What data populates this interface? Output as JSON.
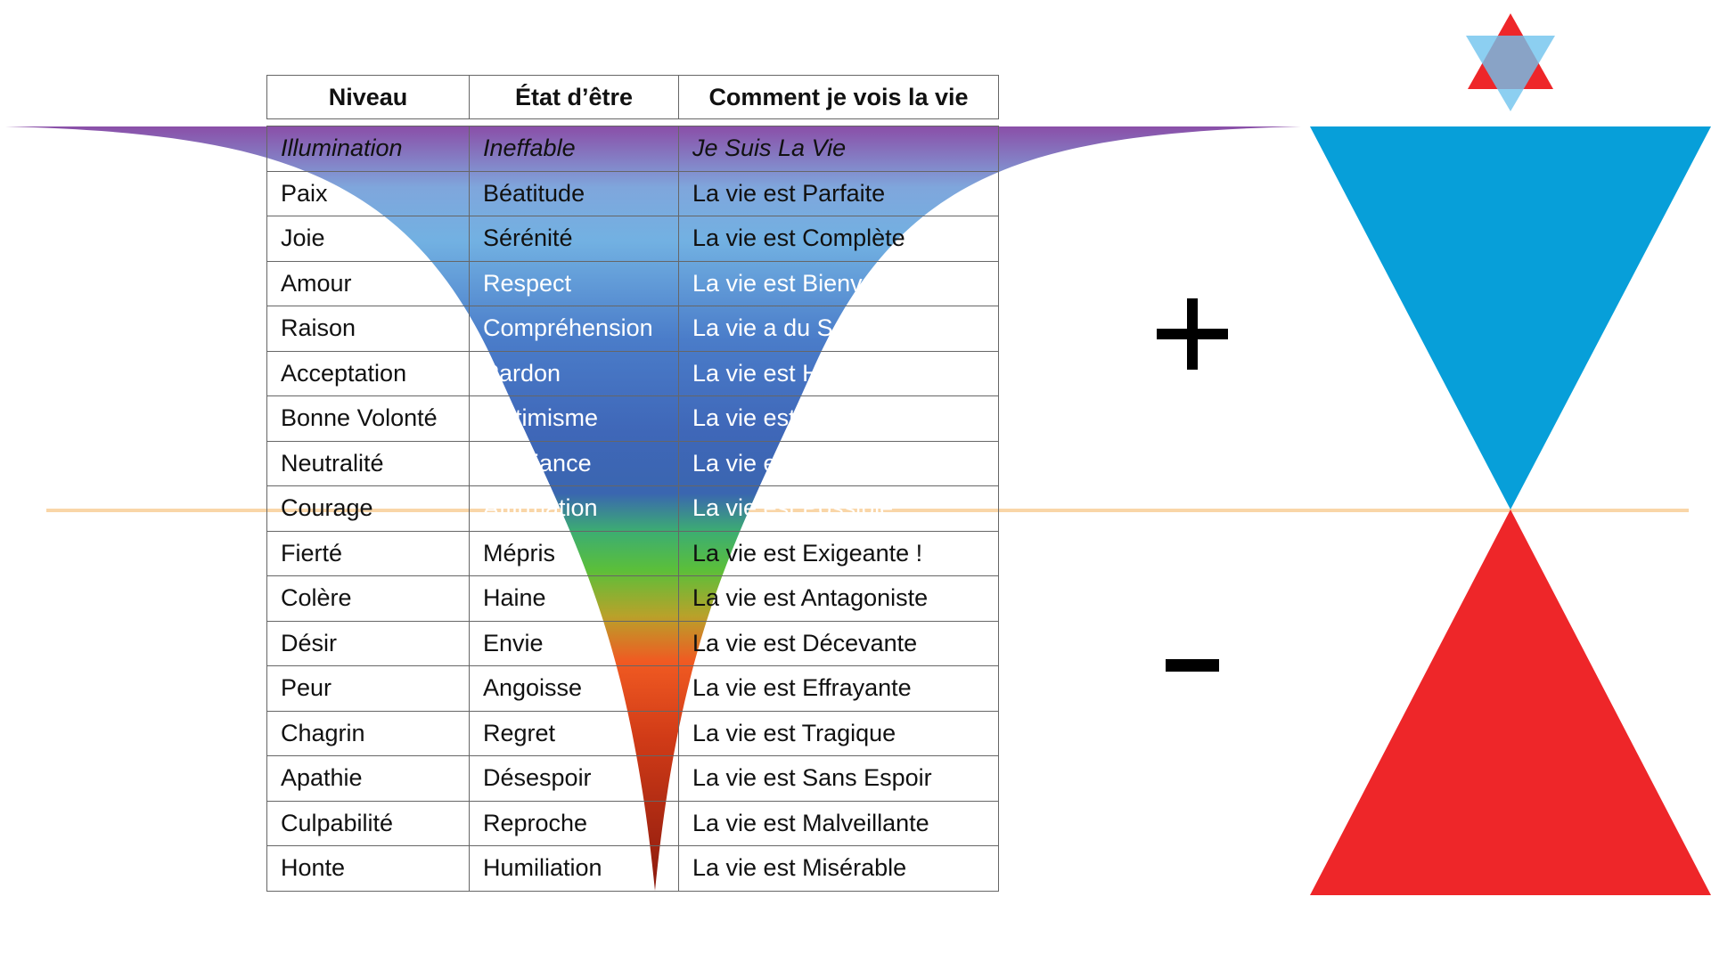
{
  "table": {
    "headers": [
      "Niveau",
      "État d’être",
      "Comment je vois la vie"
    ],
    "rows": [
      {
        "niveau": "Illumination",
        "etat": "Ineffable",
        "vie": "Je Suis La Vie"
      },
      {
        "niveau": "Paix",
        "etat": "Béatitude",
        "vie": "La vie est Parfaite"
      },
      {
        "niveau": "Joie",
        "etat": "Sérénité",
        "vie": "La vie est Complète"
      },
      {
        "niveau": "Amour",
        "etat": "Respect",
        "vie": "La vie est Bienveillante"
      },
      {
        "niveau": "Raison",
        "etat": "Compréhension",
        "vie": "La vie a du Sens"
      },
      {
        "niveau": "Acceptation",
        "etat": "Pardon",
        "vie": "La vie est Harmonieuse"
      },
      {
        "niveau": "Bonne Volonté",
        "etat": "Optimisme",
        "vie": "La vie est Pleine d’Espoir"
      },
      {
        "niveau": "Neutralité",
        "etat": "Confiance",
        "vie": "La vie est Satisfaisante"
      },
      {
        "niveau": "Courage",
        "etat": "Affirmation",
        "vie": "La vie est Possible"
      },
      {
        "niveau": "Fierté",
        "etat": "Mépris",
        "vie": "La vie est Exigeante !"
      },
      {
        "niveau": "Colère",
        "etat": "Haine",
        "vie": "La vie est Antagoniste"
      },
      {
        "niveau": "Désir",
        "etat": "Envie",
        "vie": "La vie est Décevante"
      },
      {
        "niveau": "Peur",
        "etat": "Angoisse",
        "vie": "La vie est Effrayante"
      },
      {
        "niveau": "Chagrin",
        "etat": "Regret",
        "vie": "La vie est Tragique"
      },
      {
        "niveau": "Apathie",
        "etat": "Désespoir",
        "vie": "La vie est Sans Espoir"
      },
      {
        "niveau": "Culpabilité",
        "etat": "Reproche",
        "vie": "La vie est Malveillante"
      },
      {
        "niveau": "Honte",
        "etat": "Humiliation",
        "vie": "La vie est Misérable"
      }
    ]
  },
  "signs": {
    "positive": "+",
    "negative": "-"
  },
  "colors": {
    "funnel_top": "#8a4fa8",
    "funnel_blue": "#3d6fc2",
    "funnel_green": "#5bbf3a",
    "funnel_orange": "#f05a22",
    "funnel_bottom": "#8b1a0e",
    "hourglass_top": "#079fd9",
    "hourglass_bottom": "#ee2629",
    "midline": "#f9d6a8",
    "star_red": "#ee2629",
    "star_blue": "#6fc3ee"
  }
}
